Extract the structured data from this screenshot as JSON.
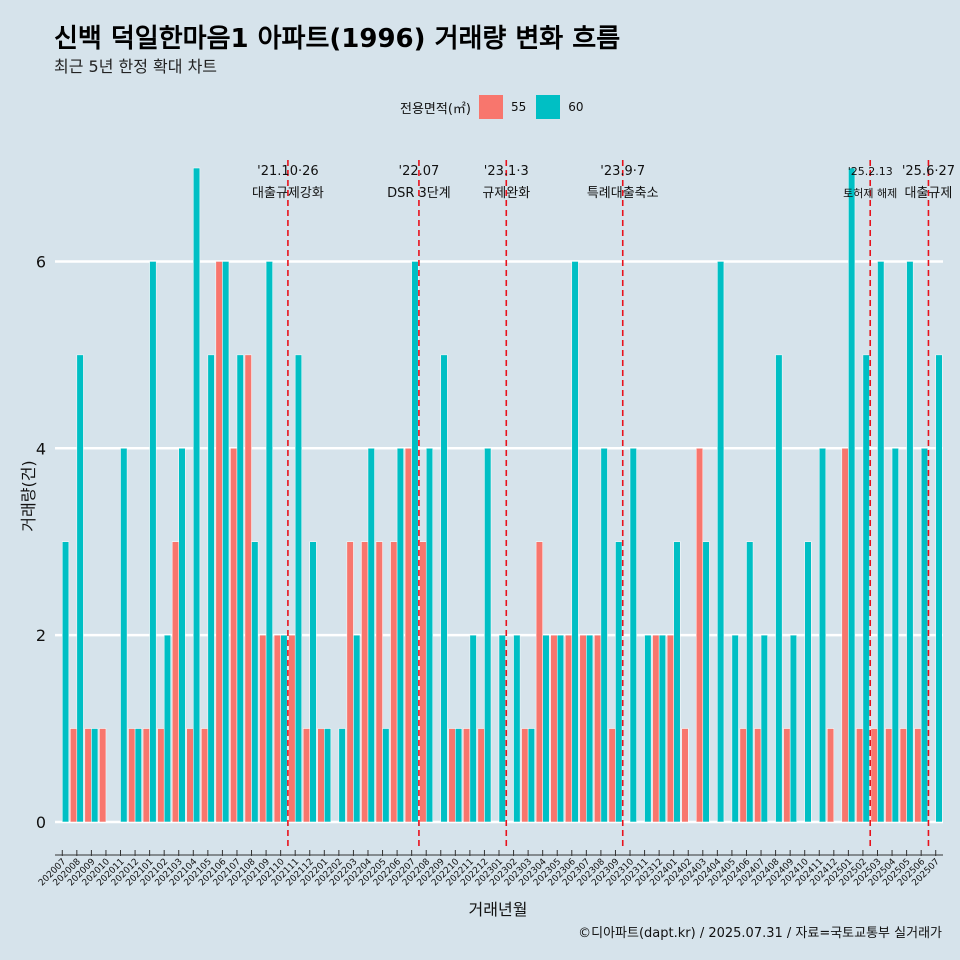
{
  "chart_data": {
    "type": "bar",
    "title": "신백 덕일한마음1 아파트(1996) 거래량 변화 흐름",
    "subtitle": "최근 5년 한정 확대 차트",
    "legend_title": "전용면적(㎡)",
    "xlabel": "거래년월",
    "ylabel": "거래량(건)",
    "caption": "©디아파트(dapt.kr) / 2025.07.31 / 자료=국토교통부 실거래가",
    "ylim": [
      -0.3,
      7.3
    ],
    "yticks": [
      0,
      2,
      4,
      6
    ],
    "colors": {
      "s55": "#f8766d",
      "s60": "#00bfc4",
      "background": "#d6e3eb",
      "vline": "#e8111b"
    },
    "categories": [
      "202007",
      "202008",
      "202009",
      "202010",
      "202011",
      "202012",
      "202101",
      "202102",
      "202103",
      "202104",
      "202105",
      "202106",
      "202107",
      "202108",
      "202109",
      "202110",
      "202111",
      "202112",
      "202201",
      "202202",
      "202203",
      "202204",
      "202205",
      "202206",
      "202207",
      "202208",
      "202209",
      "202210",
      "202211",
      "202212",
      "202301",
      "202302",
      "202303",
      "202304",
      "202305",
      "202306",
      "202307",
      "202308",
      "202309",
      "202310",
      "202311",
      "202312",
      "202401",
      "202402",
      "202403",
      "202404",
      "202405",
      "202406",
      "202407",
      "202408",
      "202409",
      "202410",
      "202411",
      "202412",
      "202501",
      "202502",
      "202503",
      "202504",
      "202505",
      "202506",
      "202507"
    ],
    "series": [
      {
        "name": "55",
        "values": [
          0,
          1,
          1,
          1,
          0,
          1,
          1,
          1,
          3,
          1,
          1,
          6,
          4,
          5,
          2,
          2,
          2,
          1,
          1,
          0,
          3,
          3,
          3,
          3,
          4,
          3,
          0,
          1,
          1,
          1,
          0,
          0,
          1,
          3,
          2,
          2,
          2,
          2,
          1,
          0,
          0,
          2,
          2,
          1,
          4,
          0,
          0,
          1,
          1,
          0,
          1,
          0,
          0,
          1,
          4,
          1,
          1,
          1,
          1,
          1,
          0
        ]
      },
      {
        "name": "60",
        "values": [
          3,
          5,
          1,
          0,
          4,
          1,
          6,
          2,
          4,
          7,
          5,
          6,
          5,
          3,
          6,
          2,
          5,
          3,
          1,
          1,
          2,
          4,
          1,
          4,
          6,
          4,
          5,
          1,
          2,
          4,
          2,
          2,
          1,
          2,
          2,
          6,
          2,
          4,
          3,
          4,
          2,
          2,
          3,
          0,
          3,
          6,
          2,
          3,
          2,
          5,
          2,
          3,
          4,
          0,
          7,
          5,
          6,
          4,
          6,
          4,
          5
        ]
      }
    ],
    "annotations": [
      {
        "after": "202110",
        "line1": "'21.10·26",
        "line2": "대출규제강화",
        "small": false
      },
      {
        "after": "202207",
        "line1": "'22.07",
        "line2": "DSR 3단계",
        "small": false
      },
      {
        "after": "202301",
        "line1": "'23.1·3",
        "line2": "규제완화",
        "small": false
      },
      {
        "after": "202309",
        "line1": "'23.9·7",
        "line2": "특례대출축소",
        "small": false
      },
      {
        "after": "202502",
        "line1": "'25.2.13",
        "line2": "토허제 해제",
        "small": true
      },
      {
        "after": "202506",
        "line1": "'25.6·27",
        "line2": "대출규제",
        "small": false
      }
    ]
  }
}
